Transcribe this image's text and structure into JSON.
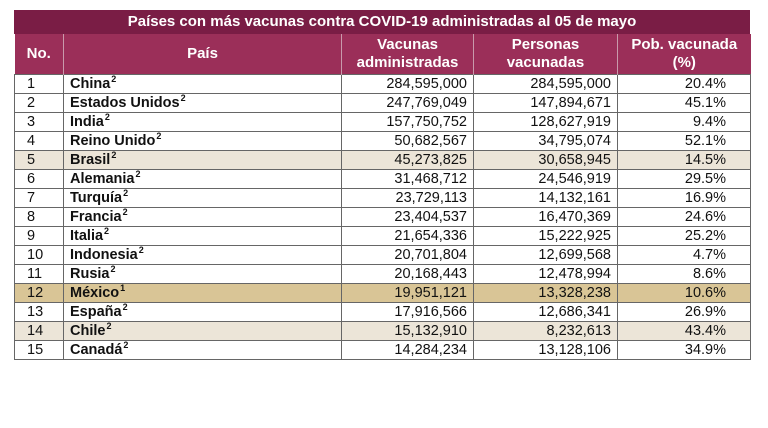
{
  "title": "Países con más vacunas contra COVID-19 administradas al 05 de mayo",
  "headers": {
    "no": "No.",
    "country": "País",
    "doses": "Vacunas administradas",
    "people": "Personas vacunadas",
    "pct": "Pob. vacunada (%)"
  },
  "colors": {
    "title_bg": "#7a1d45",
    "header_bg": "#9b2f59",
    "highlight_beige": "#ece5d8",
    "highlight_gold": "#d9c596"
  },
  "rows": [
    {
      "no": "1",
      "country": "China",
      "sup": "2",
      "doses": "284,595,000",
      "people": "284,595,000",
      "pct": "20.4%",
      "highlight": ""
    },
    {
      "no": "2",
      "country": "Estados Unidos",
      "sup": "2",
      "doses": "247,769,049",
      "people": "147,894,671",
      "pct": "45.1%",
      "highlight": ""
    },
    {
      "no": "3",
      "country": "India",
      "sup": "2",
      "doses": "157,750,752",
      "people": "128,627,919",
      "pct": "9.4%",
      "highlight": ""
    },
    {
      "no": "4",
      "country": "Reino Unido",
      "sup": "2",
      "doses": "50,682,567",
      "people": "34,795,074",
      "pct": "52.1%",
      "highlight": ""
    },
    {
      "no": "5",
      "country": "Brasil",
      "sup": "2",
      "doses": "45,273,825",
      "people": "30,658,945",
      "pct": "14.5%",
      "highlight": "beige"
    },
    {
      "no": "6",
      "country": "Alemania",
      "sup": "2",
      "doses": "31,468,712",
      "people": "24,546,919",
      "pct": "29.5%",
      "highlight": ""
    },
    {
      "no": "7",
      "country": "Turquía",
      "sup": "2",
      "doses": "23,729,113",
      "people": "14,132,161",
      "pct": "16.9%",
      "highlight": ""
    },
    {
      "no": "8",
      "country": "Francia",
      "sup": "2",
      "doses": "23,404,537",
      "people": "16,470,369",
      "pct": "24.6%",
      "highlight": ""
    },
    {
      "no": "9",
      "country": "Italia",
      "sup": "2",
      "doses": "21,654,336",
      "people": "15,222,925",
      "pct": "25.2%",
      "highlight": ""
    },
    {
      "no": "10",
      "country": "Indonesia",
      "sup": "2",
      "doses": "20,701,804",
      "people": "12,699,568",
      "pct": "4.7%",
      "highlight": ""
    },
    {
      "no": "11",
      "country": "Rusia",
      "sup": "2",
      "doses": "20,168,443",
      "people": "12,478,994",
      "pct": "8.6%",
      "highlight": ""
    },
    {
      "no": "12",
      "country": "México",
      "sup": "1",
      "doses": "19,951,121",
      "people": "13,328,238",
      "pct": "10.6%",
      "highlight": "gold"
    },
    {
      "no": "13",
      "country": "España",
      "sup": "2",
      "doses": "17,916,566",
      "people": "12,686,341",
      "pct": "26.9%",
      "highlight": ""
    },
    {
      "no": "14",
      "country": "Chile",
      "sup": "2",
      "doses": "15,132,910",
      "people": "8,232,613",
      "pct": "43.4%",
      "highlight": "beige"
    },
    {
      "no": "15",
      "country": "Canadá",
      "sup": "2",
      "doses": "14,284,234",
      "people": "13,128,106",
      "pct": "34.9%",
      "highlight": ""
    }
  ]
}
